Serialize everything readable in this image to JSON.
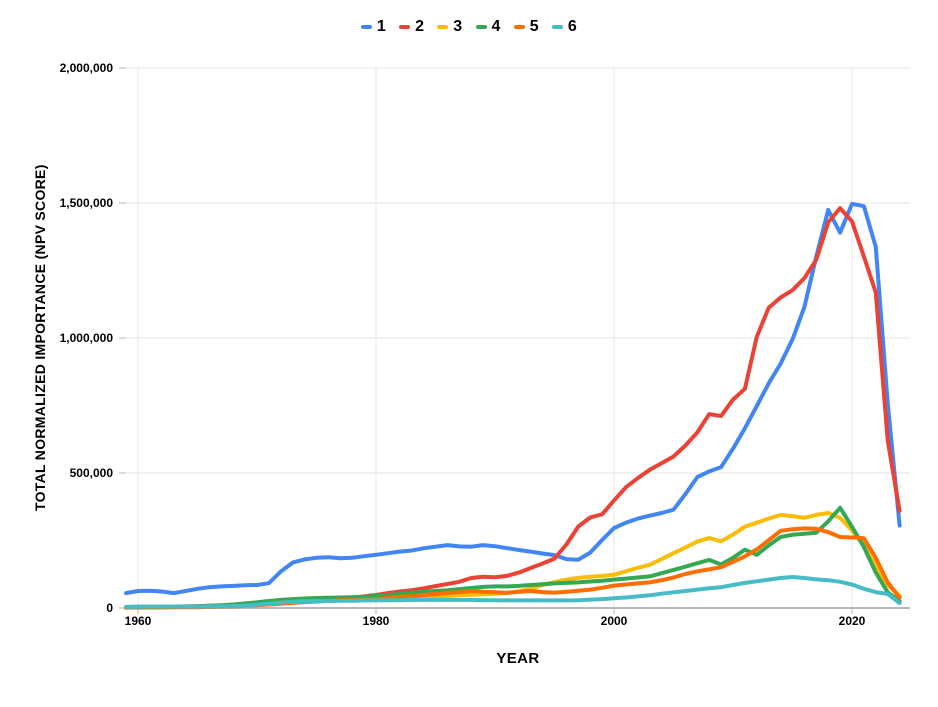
{
  "legend": {
    "items": [
      {
        "label": "1",
        "color": "#4285F4"
      },
      {
        "label": "2",
        "color": "#EA4335"
      },
      {
        "label": "3",
        "color": "#FBBC04"
      },
      {
        "label": "4",
        "color": "#34A853"
      },
      {
        "label": "5",
        "color": "#FF6D01"
      },
      {
        "label": "6",
        "color": "#46BDC6"
      }
    ]
  },
  "y_axis": {
    "title": "TOTAL NORMALIZED IMPORTANCE (NPV SCORE)",
    "ticks": [
      "2,000,000",
      "1,500,000",
      "1,000,000",
      "500,000",
      "0"
    ]
  },
  "x_axis": {
    "title": "YEAR",
    "ticks": [
      "1960",
      "1980",
      "2000",
      "2020"
    ]
  },
  "chart_data": {
    "type": "line",
    "title": "",
    "xlabel": "YEAR",
    "ylabel": "TOTAL NORMALIZED IMPORTANCE (NPV SCORE)",
    "xlim": [
      1959,
      2025
    ],
    "ylim": [
      0,
      2000000
    ],
    "grid": true,
    "legend_position": "top",
    "x_tick_years": [
      1960,
      1980,
      2000,
      2020
    ],
    "y_tick_values": [
      0,
      500000,
      1000000,
      1500000,
      2000000
    ],
    "colors": {
      "gridline": "#e6e6e6",
      "baseline": "#b7b7b7",
      "text": "#000000",
      "background": "#ffffff"
    },
    "x": [
      1959,
      1960,
      1961,
      1962,
      1963,
      1964,
      1965,
      1966,
      1967,
      1968,
      1969,
      1970,
      1971,
      1972,
      1973,
      1974,
      1975,
      1976,
      1977,
      1978,
      1979,
      1980,
      1981,
      1982,
      1983,
      1984,
      1985,
      1986,
      1987,
      1988,
      1989,
      1990,
      1991,
      1992,
      1993,
      1994,
      1995,
      1996,
      1997,
      1998,
      1999,
      2000,
      2001,
      2002,
      2003,
      2004,
      2005,
      2006,
      2007,
      2008,
      2009,
      2010,
      2011,
      2012,
      2013,
      2014,
      2015,
      2016,
      2017,
      2018,
      2019,
      2020,
      2021,
      2022,
      2023,
      2024
    ],
    "series": [
      {
        "name": "1",
        "color": "#4285F4",
        "values": [
          55000,
          63000,
          64000,
          61000,
          55000,
          63000,
          71000,
          77000,
          80000,
          82000,
          84000,
          85000,
          92000,
          135000,
          168000,
          180000,
          186000,
          188000,
          184000,
          186000,
          192000,
          197000,
          203000,
          209000,
          213000,
          221000,
          227000,
          233000,
          228000,
          227000,
          233000,
          229000,
          222000,
          215000,
          209000,
          202000,
          196000,
          181000,
          179000,
          205000,
          252000,
          296000,
          316000,
          331000,
          342000,
          352000,
          364000,
          422000,
          485000,
          506000,
          522000,
          590000,
          666000,
          748000,
          832000,
          905000,
          995000,
          1115000,
          1302000,
          1474000,
          1390000,
          1497000,
          1488000,
          1337000,
          760000,
          305000
        ]
      },
      {
        "name": "2",
        "color": "#EA4335",
        "values": [
          3000,
          4000,
          4000,
          5000,
          5000,
          6000,
          7000,
          8000,
          9000,
          11000,
          13000,
          15000,
          18000,
          22000,
          26000,
          30000,
          33000,
          35000,
          36000,
          39000,
          43000,
          48000,
          55000,
          61000,
          66000,
          73000,
          81000,
          89000,
          97000,
          111000,
          116000,
          114000,
          119000,
          131000,
          148000,
          165000,
          183000,
          235000,
          302000,
          335000,
          347000,
          398000,
          447000,
          481000,
          512000,
          536000,
          561000,
          602000,
          650000,
          718000,
          711000,
          772000,
          812000,
          1005000,
          1112000,
          1150000,
          1177000,
          1222000,
          1290000,
          1428000,
          1481000,
          1432000,
          1302000,
          1168000,
          620000,
          360000
        ]
      },
      {
        "name": "3",
        "color": "#FBBC04",
        "values": [
          2000,
          2000,
          3000,
          3000,
          3000,
          4000,
          4000,
          5000,
          6000,
          7000,
          9000,
          12000,
          15000,
          18000,
          21000,
          24000,
          26000,
          27000,
          28000,
          29000,
          30000,
          31000,
          33000,
          35000,
          37000,
          39000,
          42000,
          45000,
          47000,
          49000,
          51000,
          53000,
          56000,
          61000,
          71000,
          85000,
          96000,
          105000,
          112000,
          116000,
          119000,
          123000,
          136000,
          149000,
          160000,
          181000,
          203000,
          224000,
          246000,
          259000,
          247000,
          272000,
          301000,
          316000,
          331000,
          345000,
          340000,
          334000,
          345000,
          352000,
          334000,
          287000,
          232000,
          152000,
          86000,
          45000
        ]
      },
      {
        "name": "4",
        "color": "#34A853",
        "values": [
          2000,
          3000,
          3000,
          4000,
          4000,
          5000,
          6000,
          8000,
          10000,
          13000,
          17000,
          21000,
          26000,
          30000,
          33000,
          35000,
          37000,
          38000,
          39000,
          40000,
          42000,
          44000,
          48000,
          52000,
          56000,
          60000,
          63000,
          66000,
          70000,
          74000,
          78000,
          80000,
          80000,
          82000,
          85000,
          88000,
          91000,
          93000,
          95000,
          98000,
          101000,
          105000,
          109000,
          113000,
          117000,
          129000,
          141000,
          153000,
          166000,
          178000,
          161000,
          186000,
          216000,
          197000,
          232000,
          263000,
          271000,
          275000,
          279000,
          321000,
          371000,
          301000,
          226000,
          131000,
          58000,
          25000
        ]
      },
      {
        "name": "5",
        "color": "#FF6D01",
        "values": [
          1000,
          2000,
          2000,
          2000,
          3000,
          3000,
          3000,
          4000,
          5000,
          6000,
          8000,
          10000,
          13000,
          16000,
          19000,
          22000,
          24000,
          26000,
          28000,
          30000,
          31000,
          33000,
          37000,
          41000,
          44000,
          48000,
          52000,
          56000,
          59000,
          63000,
          60000,
          58000,
          56000,
          60000,
          63000,
          59000,
          57000,
          60000,
          64000,
          68000,
          75000,
          83000,
          87000,
          91000,
          95000,
          103000,
          113000,
          126000,
          136000,
          143000,
          151000,
          171000,
          191000,
          217000,
          251000,
          286000,
          292000,
          295000,
          293000,
          281000,
          263000,
          261000,
          258000,
          185000,
          95000,
          38000
        ]
      },
      {
        "name": "6",
        "color": "#46BDC6",
        "values": [
          4000,
          5000,
          5000,
          5000,
          5000,
          5000,
          5000,
          6000,
          6000,
          7000,
          9000,
          12000,
          16000,
          20000,
          23000,
          25000,
          26000,
          26000,
          27000,
          27000,
          28000,
          28000,
          29000,
          29000,
          30000,
          30000,
          30000,
          30000,
          30000,
          30000,
          29000,
          29000,
          28000,
          28000,
          28000,
          28000,
          28000,
          28000,
          29000,
          31000,
          33000,
          36000,
          39000,
          43000,
          47000,
          53000,
          58000,
          63000,
          68000,
          73000,
          77000,
          85000,
          93000,
          99000,
          105000,
          111000,
          115000,
          111000,
          106000,
          103000,
          97000,
          87000,
          71000,
          59000,
          52000,
          18000
        ]
      }
    ]
  }
}
